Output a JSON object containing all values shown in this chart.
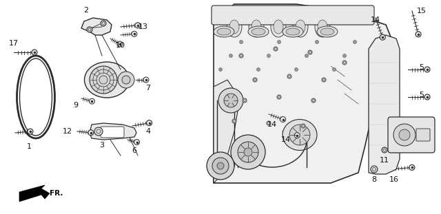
{
  "bg_color": "#ffffff",
  "image_b64": ""
}
